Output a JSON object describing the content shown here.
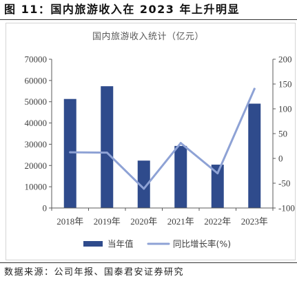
{
  "header": {
    "title": "图 11：国内旅游收入在 2023 年上升明显"
  },
  "chart_data": {
    "type": "bar",
    "title": "国内旅游收入统计（亿元）",
    "categories": [
      "2018年",
      "2019年",
      "2020年",
      "2021年",
      "2022年",
      "2023年"
    ],
    "series": [
      {
        "name": "当年值",
        "type": "bar",
        "axis": "left",
        "values": [
          51300,
          57300,
          22300,
          29200,
          20400,
          49100
        ],
        "color": "#2f4b8c"
      },
      {
        "name": "同比增长率(%)",
        "type": "line",
        "axis": "right",
        "values": [
          12.3,
          11.7,
          -61.1,
          31.0,
          -30.0,
          140.3
        ],
        "color": "#8ea2d5"
      }
    ],
    "y_left": {
      "range": [
        0,
        70000
      ],
      "tick_labels": [
        "0",
        "10000",
        "20000",
        "30000",
        "40000",
        "50000",
        "60000",
        "70000"
      ]
    },
    "y_right": {
      "range": [
        -100,
        200
      ],
      "tick_labels": [
        "-100",
        "-50",
        "0",
        "50",
        "100",
        "150",
        "200"
      ]
    },
    "grid": false,
    "legend": "bottom",
    "axis_color": "#595959"
  },
  "footer": {
    "source": "数据来源：公司年报、国泰君安证券研究"
  }
}
